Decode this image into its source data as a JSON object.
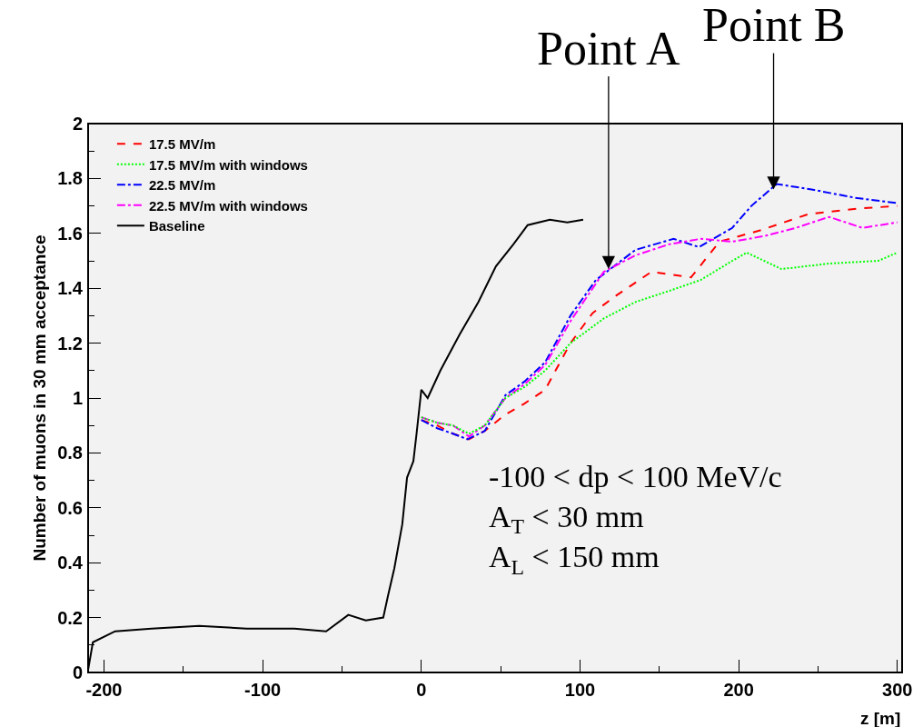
{
  "chart_data": {
    "type": "line",
    "xlabel": "z [m]",
    "ylabel": "Number of muons in 30 mm acceptance",
    "xlim": [
      -210,
      303
    ],
    "xticks": [
      -200,
      -100,
      0,
      100,
      200,
      300
    ],
    "ylim": [
      0,
      2
    ],
    "yticks": [
      0,
      0.2,
      0.4,
      0.6,
      0.8,
      1,
      1.2,
      1.4,
      1.6,
      1.8,
      2
    ],
    "grid": false,
    "legend": "top left",
    "marker": "none",
    "series": [
      {
        "name": "17.5 MV/m",
        "color": "#ff0000",
        "line_style": "dashed",
        "x": [
          0,
          10,
          20,
          30,
          40,
          53,
          65,
          78,
          94,
          108,
          122,
          145,
          170,
          188,
          213,
          244,
          275,
          300
        ],
        "values": [
          0.92,
          0.9,
          0.87,
          0.85,
          0.88,
          0.94,
          0.98,
          1.03,
          1.2,
          1.31,
          1.37,
          1.46,
          1.44,
          1.57,
          1.61,
          1.67,
          1.69,
          1.7
        ]
      },
      {
        "name": "17.5 MV/m with windows",
        "color": "#00ff00",
        "line_style": "dotted",
        "x": [
          0,
          10,
          20,
          30,
          40,
          53,
          65,
          78,
          94,
          115,
          135,
          156,
          176,
          196,
          205,
          227,
          257,
          288,
          300
        ],
        "values": [
          0.93,
          0.91,
          0.9,
          0.87,
          0.9,
          1.0,
          1.04,
          1.1,
          1.2,
          1.29,
          1.35,
          1.39,
          1.43,
          1.5,
          1.53,
          1.47,
          1.49,
          1.5,
          1.53
        ]
      },
      {
        "name": "22.5 MV/m",
        "color": "#0000ff",
        "line_style": "dashdot",
        "x": [
          0,
          10,
          20,
          29,
          40,
          53,
          65,
          78,
          94,
          110,
          135,
          159,
          175,
          196,
          208,
          224,
          246,
          273,
          300
        ],
        "values": [
          0.92,
          0.89,
          0.87,
          0.85,
          0.88,
          1.01,
          1.06,
          1.13,
          1.3,
          1.43,
          1.54,
          1.58,
          1.55,
          1.62,
          1.7,
          1.78,
          1.76,
          1.73,
          1.71
        ]
      },
      {
        "name": "22.5 MV/m with windows",
        "color": "#ff00ff",
        "line_style": "dashdot",
        "x": [
          0,
          10,
          20,
          30,
          40,
          53,
          65,
          78,
          94,
          115,
          135,
          156,
          176,
          196,
          216,
          236,
          257,
          278,
          300
        ],
        "values": [
          0.93,
          0.91,
          0.9,
          0.86,
          0.9,
          1.0,
          1.05,
          1.12,
          1.28,
          1.46,
          1.52,
          1.56,
          1.58,
          1.57,
          1.59,
          1.62,
          1.66,
          1.62,
          1.64
        ]
      },
      {
        "name": "Baseline",
        "color": "#000000",
        "line_style": "solid",
        "x": [
          -210,
          -207,
          -193,
          -170,
          -140,
          -110,
          -80,
          -60,
          -46,
          -35,
          -24,
          -21,
          -17,
          -12,
          -9,
          -5,
          -3,
          0,
          4,
          12,
          24,
          36,
          47,
          58,
          67,
          81,
          92,
          102
        ],
        "values": [
          0.01,
          0.11,
          0.15,
          0.16,
          0.17,
          0.16,
          0.16,
          0.15,
          0.21,
          0.19,
          0.2,
          0.28,
          0.38,
          0.54,
          0.71,
          0.77,
          0.87,
          1.03,
          1.0,
          1.1,
          1.23,
          1.35,
          1.48,
          1.56,
          1.63,
          1.65,
          1.64,
          1.65
        ]
      }
    ],
    "annotations": [
      {
        "text": "Point A",
        "x": 118,
        "y": 1.47
      },
      {
        "text": "Point B",
        "x": 222,
        "y": 1.76
      },
      "-100 < dp < 100 MeV/c",
      "A$_{T}$ < 30 mm",
      "A$_{L}$ < 150 mm"
    ]
  }
}
